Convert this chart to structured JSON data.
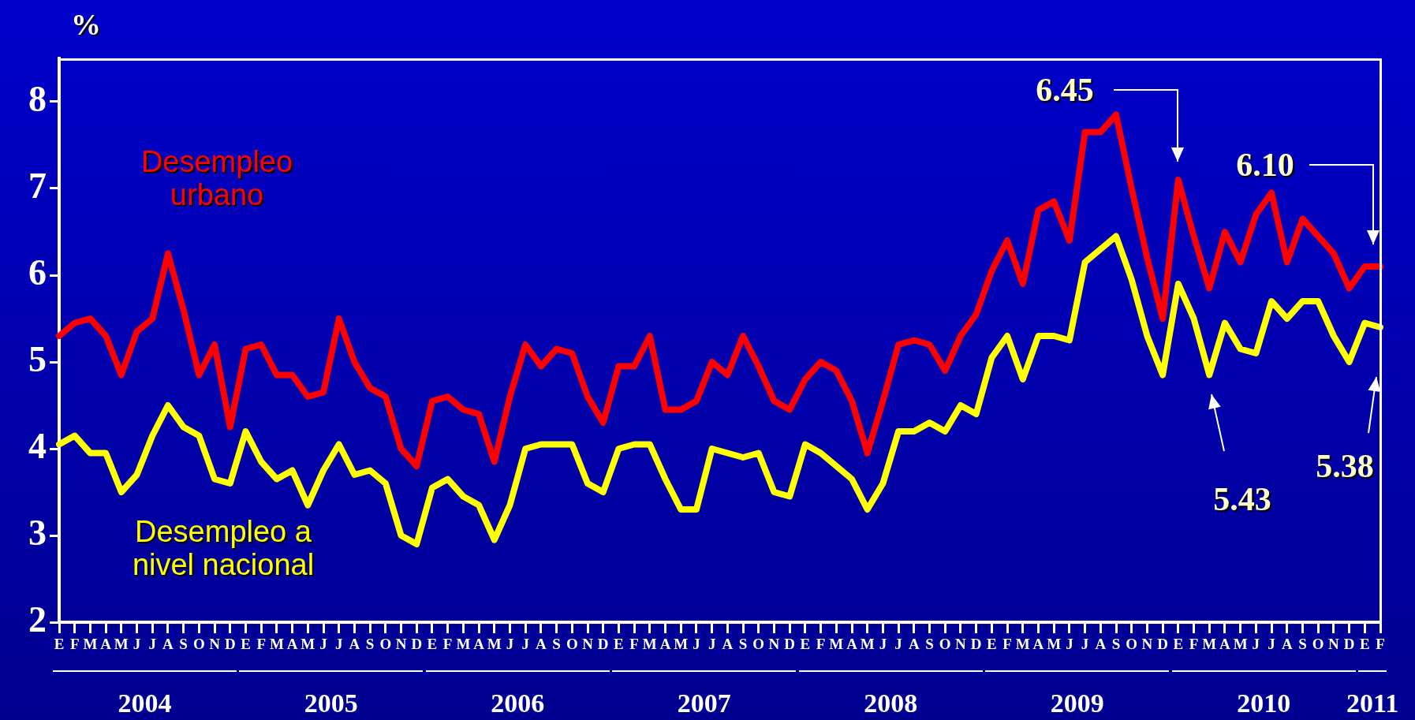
{
  "chart_data": {
    "type": "line",
    "ylabel": "%",
    "categories": [
      "E",
      "F",
      "M",
      "A",
      "M",
      "J",
      "J",
      "A",
      "S",
      "O",
      "N",
      "D",
      "E",
      "F",
      "M",
      "A",
      "M",
      "J",
      "J",
      "A",
      "S",
      "O",
      "N",
      "D",
      "E",
      "F",
      "M",
      "A",
      "M",
      "J",
      "J",
      "A",
      "S",
      "O",
      "N",
      "D",
      "E",
      "F",
      "M",
      "A",
      "M",
      "J",
      "J",
      "A",
      "S",
      "O",
      "N",
      "D",
      "E",
      "F",
      "M",
      "A",
      "M",
      "J",
      "J",
      "A",
      "S",
      "O",
      "N",
      "D",
      "E",
      "F",
      "M",
      "A",
      "M",
      "J",
      "J",
      "A",
      "S",
      "O",
      "N",
      "D",
      "E",
      "F",
      "M",
      "A",
      "M",
      "J",
      "J",
      "A",
      "S",
      "O",
      "N",
      "D",
      "E",
      "F"
    ],
    "series": [
      {
        "name": "Desempleo urbano",
        "color": "#ff0000",
        "values": [
          5.3,
          5.45,
          5.5,
          5.3,
          4.85,
          5.35,
          5.5,
          6.25,
          5.6,
          4.85,
          5.2,
          4.25,
          5.15,
          5.2,
          4.85,
          4.85,
          4.6,
          4.65,
          5.5,
          5.0,
          4.7,
          4.6,
          4.0,
          3.8,
          4.55,
          4.6,
          4.45,
          4.4,
          3.85,
          4.6,
          5.2,
          4.95,
          5.15,
          5.1,
          4.6,
          4.3,
          4.95,
          4.95,
          5.3,
          4.45,
          4.45,
          4.55,
          5.0,
          4.85,
          5.3,
          4.95,
          4.55,
          4.45,
          4.8,
          5.0,
          4.9,
          4.55,
          3.95,
          4.55,
          5.2,
          5.25,
          5.2,
          4.9,
          5.3,
          5.55,
          6.05,
          6.4,
          5.9,
          6.75,
          6.85,
          6.4,
          7.65,
          7.65,
          7.85,
          7.0,
          6.2,
          5.5,
          7.1,
          6.45,
          5.85,
          6.5,
          6.15,
          6.7,
          6.95,
          6.15,
          6.65,
          6.45,
          6.25,
          5.85,
          6.1,
          6.1
        ]
      },
      {
        "name": "Desempleo a nivel nacional",
        "color": "#ffff00",
        "values": [
          4.05,
          4.15,
          3.95,
          3.95,
          3.5,
          3.7,
          4.15,
          4.5,
          4.25,
          4.15,
          3.65,
          3.6,
          4.2,
          3.85,
          3.65,
          3.75,
          3.35,
          3.75,
          4.05,
          3.7,
          3.75,
          3.6,
          3.0,
          2.9,
          3.55,
          3.65,
          3.45,
          3.35,
          2.95,
          3.35,
          4.0,
          4.05,
          4.05,
          4.05,
          3.6,
          3.5,
          4.0,
          4.05,
          4.05,
          3.65,
          3.3,
          3.3,
          4.0,
          3.95,
          3.9,
          3.95,
          3.5,
          3.45,
          4.05,
          3.95,
          3.8,
          3.65,
          3.3,
          3.6,
          4.2,
          4.2,
          4.3,
          4.2,
          4.5,
          4.4,
          5.05,
          5.3,
          4.8,
          5.3,
          5.3,
          5.25,
          6.15,
          6.3,
          6.45,
          5.95,
          5.3,
          4.85,
          5.9,
          5.5,
          4.85,
          5.45,
          5.15,
          5.1,
          5.7,
          5.5,
          5.7,
          5.7,
          5.3,
          5.0,
          5.45,
          5.4
        ]
      }
    ],
    "ylim": [
      2,
      8.5
    ],
    "yticks": [
      2,
      3,
      4,
      5,
      6,
      7,
      8
    ],
    "marker": "none",
    "annotations": [
      "6.45",
      "6.10",
      "5.43",
      "5.38",
      "2004",
      "2005",
      "2006",
      "2007",
      "2008",
      "2009",
      "2010",
      "2011"
    ]
  }
}
